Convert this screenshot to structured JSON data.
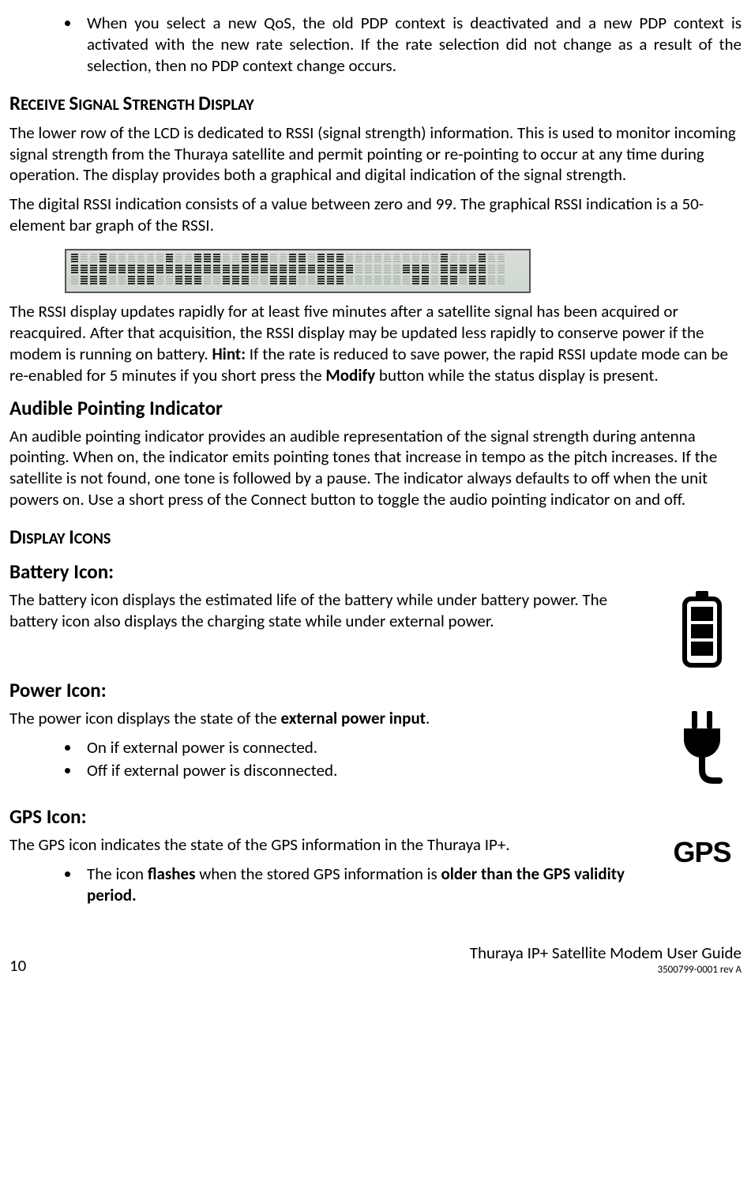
{
  "top_bullet": {
    "text_prefix": "When you select a new QoS, the old PDP context is deactivated and a new PDP context is activated with the new rate selection. If the rate selection did not change as a result of the selection, then no PDP context change occurs."
  },
  "sec_rssd": {
    "heading_first": "R",
    "heading_rest1": "ECEIVE ",
    "heading_first2": "S",
    "heading_rest2": "IGNAL ",
    "heading_first3": "S",
    "heading_rest3": "TRENGTH ",
    "heading_first4": "D",
    "heading_rest4": "ISPLAY",
    "p1": "The lower row of the LCD is dedicated to RSSI (signal strength) information. This is used to monitor incoming signal strength from the Thuraya satellite and permit pointing or re-pointing to occur at any time during operation. The display provides both a graphical and digital indication of the signal strength.",
    "p2": "The digital RSSI indication consists of a value between zero and 99. The graphical RSSI indication is a 50-element bar graph of the RSSI.",
    "p3a": "The RSSI display updates rapidly for at least five minutes after a satellite signal has been acquired or reacquired. After that acquisition, the RSSI display may be updated less rapidly to conserve power if the modem is running on battery. ",
    "hint_label": "Hint:",
    "p3b": " If the rate is reduced to save power, the rapid RSSI update mode can be re-enabled for 5 minutes if you short press the ",
    "modify_label": "Modify",
    "p3c": " button while the status display is present."
  },
  "sec_audible": {
    "heading": "Audible Pointing Indicator",
    "p": "An audible pointing indicator provides an audible representation of the signal strength during antenna pointing. When on, the indicator emits pointing tones that increase in tempo as the pitch increases. If the satellite is not found, one tone is followed by a pause. The indicator always defaults to off when the unit powers on. Use a short press of the Connect button to toggle the audio pointing indicator on and off."
  },
  "sec_icons": {
    "heading_first": "D",
    "heading_rest1": "ISPLAY ",
    "heading_first2": "I",
    "heading_rest2": "CONS",
    "battery": {
      "heading": "Battery Icon:",
      "p": "The battery icon displays the estimated life of the battery while under battery power. The battery icon also displays the charging state while under external power."
    },
    "power": {
      "heading": "Power Icon:",
      "p_a": "The power icon displays the state of the ",
      "p_bold": "external power input",
      "p_b": ".",
      "b1": "On if external power is connected.",
      "b2": "Off if external power is disconnected."
    },
    "gps": {
      "heading": "GPS Icon:",
      "p": "The GPS icon indicates the state of the GPS information in the Thuraya IP+.",
      "b1a": "The icon ",
      "b1bold1": "flashes",
      "b1b": " when the stored GPS information is ",
      "b1bold2": "older than the GPS validity period."
    }
  },
  "footer": {
    "page": "10",
    "title": "Thuraya IP+ Satellite Modem User Guide",
    "rev": "3500799-0001 rev A"
  }
}
